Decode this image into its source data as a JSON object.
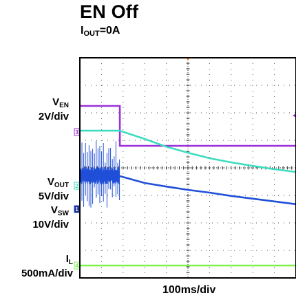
{
  "chart_data": {
    "type": "line",
    "title": "EN Off",
    "subtitle_main": "I",
    "subtitle_sub": "OUT",
    "subtitle_tail": "=0A",
    "xlabel": "100ms/div",
    "x_divisions": 10,
    "y_divisions": 8,
    "grid": true,
    "series": [
      {
        "key": "ven",
        "label_main": "V",
        "label_sub": "EN",
        "label_scale": "2V/div",
        "channel": "3",
        "color": "#9b30d9",
        "baseline": 2.7,
        "x": [
          0,
          1.85,
          1.85,
          10
        ],
        "y": [
          0.95,
          0.95,
          -0.5,
          -0.5
        ]
      },
      {
        "key": "vout",
        "label_main": "V",
        "label_sub": "OUT",
        "label_scale": "5V/div",
        "channel": "2",
        "color": "#3ddcc0",
        "baseline": 4.65,
        "x": [
          0,
          1.85,
          3,
          4,
          5,
          6,
          7,
          8,
          9,
          10
        ],
        "y": [
          2.0,
          2.0,
          1.7,
          1.42,
          1.2,
          1.0,
          0.85,
          0.72,
          0.6,
          0.5
        ]
      },
      {
        "key": "vsw",
        "label_main": "V",
        "label_sub": "SW",
        "label_scale": "10V/div",
        "channel": "1",
        "color": "#1f4fd8",
        "baseline": 5.5,
        "x": [
          0,
          1.85,
          3,
          4,
          5,
          6,
          7,
          8,
          9,
          10
        ],
        "y": [
          1.2,
          1.2,
          0.95,
          0.82,
          0.7,
          0.6,
          0.48,
          0.38,
          0.28,
          0.18
        ]
      },
      {
        "key": "il",
        "label_main": "I",
        "label_sub": "L",
        "label_scale": "500mA/div",
        "channel": "4",
        "color": "#7ef24a",
        "baseline": 7.55,
        "x": [
          0,
          10
        ],
        "y": [
          0,
          0
        ]
      }
    ]
  }
}
